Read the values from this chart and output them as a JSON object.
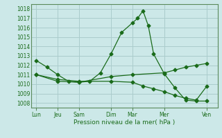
{
  "bg_color": "#cce8e8",
  "grid_color": "#aacccc",
  "line_color": "#1a6b1a",
  "ylim": [
    1007.5,
    1018.5
  ],
  "yticks": [
    1008,
    1009,
    1010,
    1011,
    1012,
    1013,
    1014,
    1015,
    1016,
    1017,
    1018
  ],
  "xlabel": "Pression niveau de la mer( hPa )",
  "day_labels": [
    "Lun",
    "Jeu",
    "Sam",
    "Dim",
    "Mar",
    "Mer",
    "Ven"
  ],
  "day_positions": [
    0,
    2,
    4,
    7,
    9,
    12,
    16
  ],
  "xlim": [
    -0.5,
    17
  ],
  "series1_x": [
    0,
    1,
    2,
    3,
    4,
    5,
    6,
    7,
    8,
    9,
    9.5,
    10,
    10.5,
    11,
    12,
    13,
    14,
    15,
    16
  ],
  "series1_y": [
    1012.5,
    1011.8,
    1011.0,
    1010.3,
    1010.2,
    1010.3,
    1011.2,
    1013.2,
    1015.5,
    1016.5,
    1017.0,
    1017.8,
    1016.2,
    1013.2,
    1011.1,
    1009.6,
    1008.3,
    1008.2,
    1008.2
  ],
  "series2_x": [
    0,
    2,
    4,
    7,
    9,
    12,
    13,
    14,
    15,
    16
  ],
  "series2_y": [
    1011.0,
    1010.3,
    1010.2,
    1010.8,
    1011.0,
    1011.2,
    1011.5,
    1011.8,
    1012.0,
    1012.2
  ],
  "series3_x": [
    0,
    2,
    4,
    7,
    9,
    10,
    11,
    12,
    13,
    14,
    15,
    16
  ],
  "series3_y": [
    1011.0,
    1010.5,
    1010.3,
    1010.3,
    1010.2,
    1009.8,
    1009.5,
    1009.2,
    1008.8,
    1008.5,
    1008.3,
    1009.8
  ]
}
